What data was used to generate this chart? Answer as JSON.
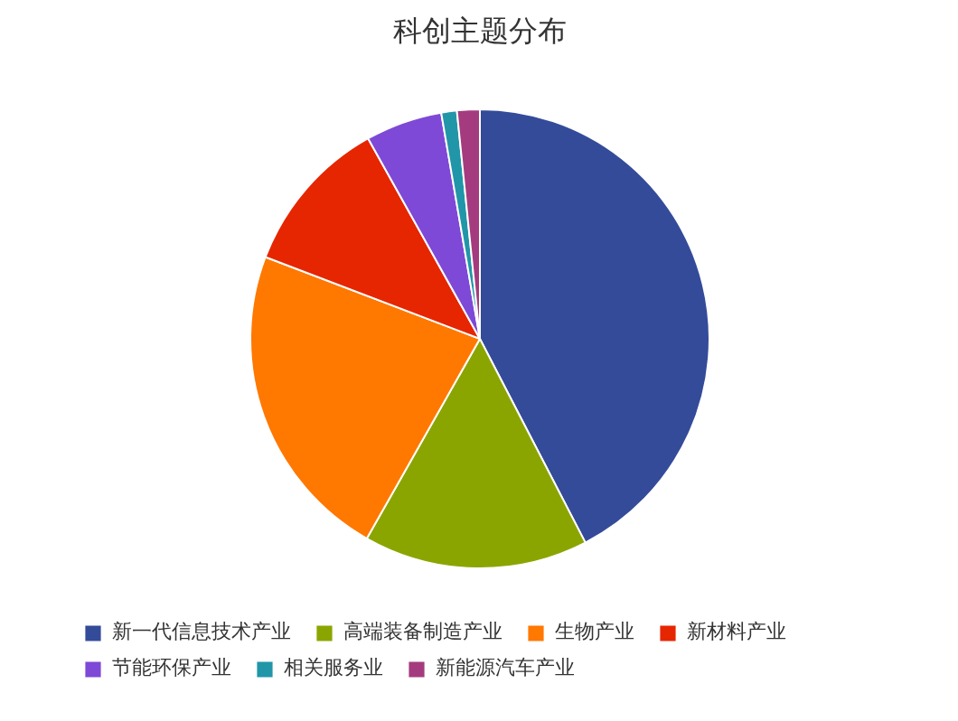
{
  "chart_data": {
    "type": "pie",
    "title": "科创主题分布",
    "categories": [
      "新一代信息技术产业",
      "高端装备制造产业",
      "生物产业",
      "新材料产业",
      "节能环保产业",
      "相关服务业",
      "新能源汽车产业"
    ],
    "values": [
      42.4,
      15.8,
      22.6,
      11.1,
      5.4,
      1.1,
      1.6
    ],
    "colors": [
      "#344b9a",
      "#8ba500",
      "#ff7800",
      "#e62600",
      "#7e49d6",
      "#2196a8",
      "#a53b7f"
    ],
    "legend": "bottom"
  }
}
